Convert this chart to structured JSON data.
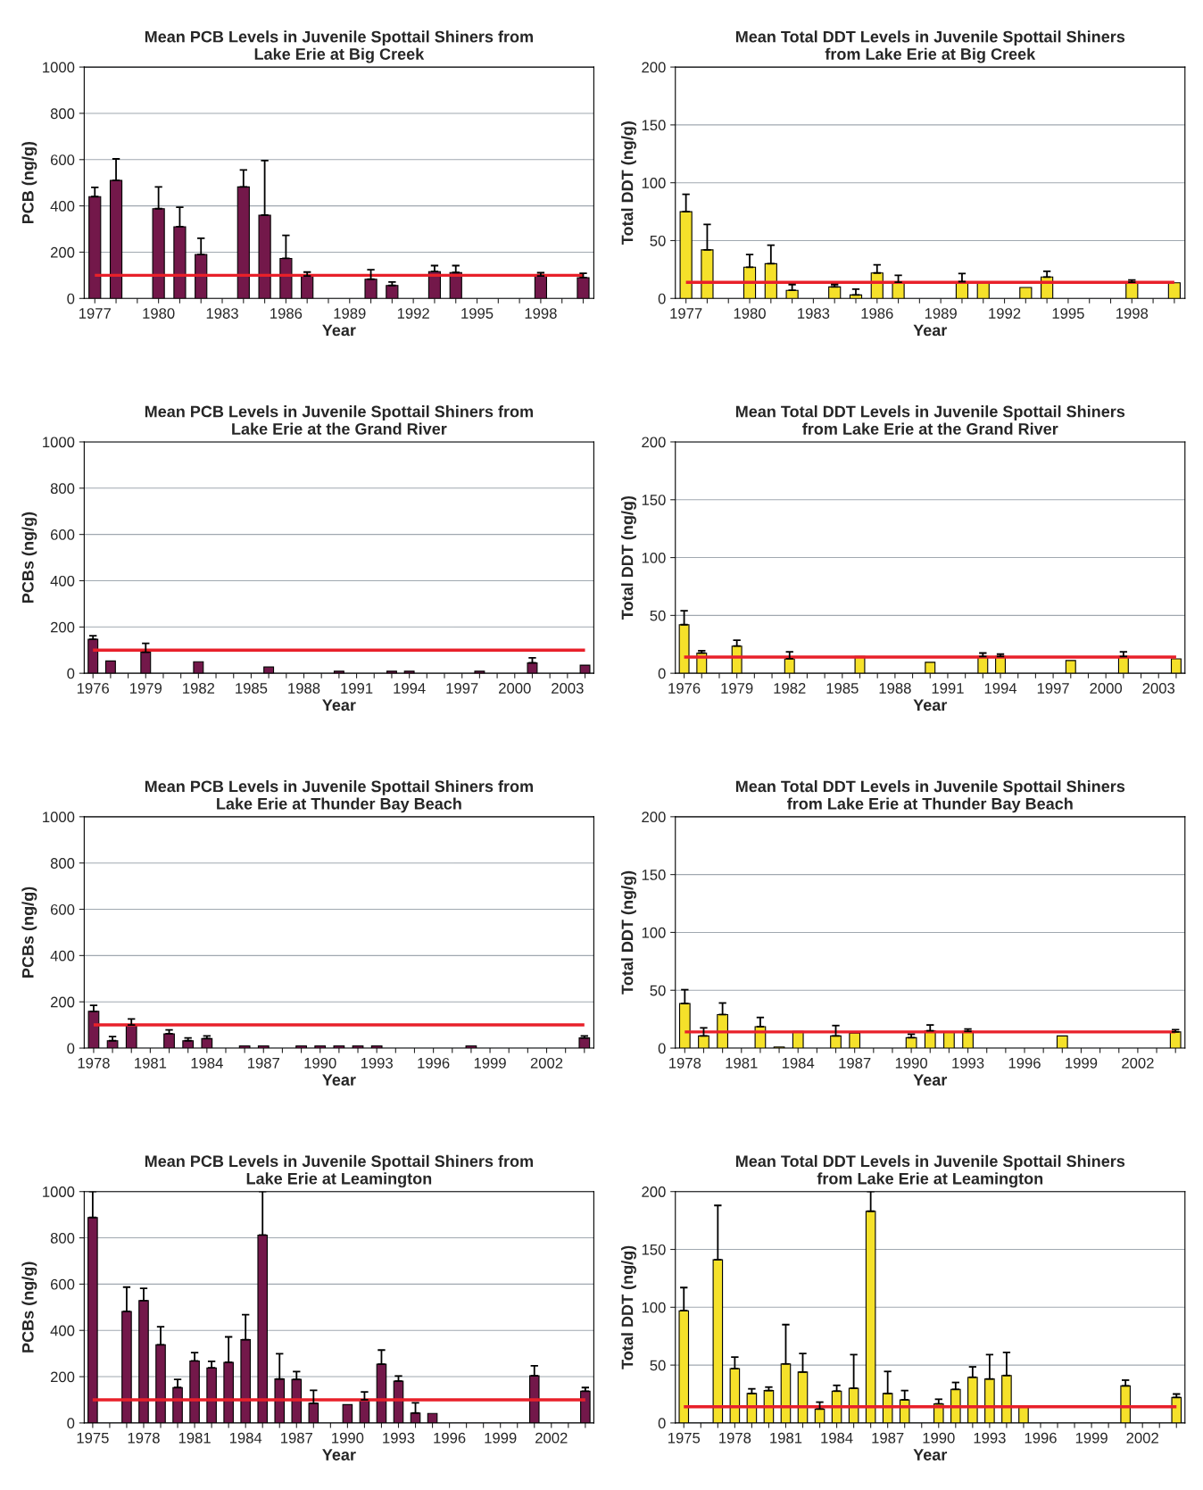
{
  "chart_data": [
    {
      "type": "bar",
      "title": "Mean PCB Levels in Juvenile Spottail Shiners from\nLake Erie at Big Creek",
      "xlabel": "Year",
      "ylabel": "PCB (ng/g)",
      "ylim": [
        0,
        1000
      ],
      "yticks": [
        0,
        200,
        400,
        600,
        800,
        1000
      ],
      "grid": "y",
      "categories": [
        "1977",
        null,
        null,
        "1980",
        null,
        null,
        "1983",
        null,
        null,
        "1986",
        null,
        null,
        "1989",
        null,
        null,
        "1992",
        null,
        null,
        "1995",
        null,
        null,
        "1998",
        null,
        null
      ],
      "series": [
        {
          "color": "#73184a",
          "values": [
            440,
            510,
            null,
            388,
            310,
            190,
            null,
            482,
            360,
            173,
            97,
            null,
            null,
            83,
            56,
            null,
            116,
            112,
            null,
            null,
            null,
            97,
            null,
            90
          ],
          "errors": [
            [
              440,
              480
            ],
            [
              510,
              603
            ],
            null,
            [
              388,
              482
            ],
            [
              310,
              394
            ],
            [
              190,
              260
            ],
            null,
            [
              482,
              555
            ],
            [
              360,
              596
            ],
            [
              173,
              273
            ],
            [
              97,
              114
            ],
            null,
            null,
            [
              83,
              124
            ],
            [
              56,
              71
            ],
            null,
            [
              116,
              142
            ],
            [
              112,
              142
            ],
            null,
            null,
            null,
            [
              97,
              111
            ],
            null,
            [
              90,
              109
            ]
          ]
        }
      ],
      "ref_lines": [
        {
          "axis": "y",
          "value": 100,
          "color": "#e8202a"
        }
      ]
    },
    {
      "type": "bar",
      "title": "Mean Total DDT Levels in Juvenile Spottail Shiners\nfrom Lake Erie at Big Creek",
      "xlabel": "Year",
      "ylabel": "Total DDT (ng/g)",
      "ylim": [
        0,
        200
      ],
      "yticks": [
        0,
        50,
        100,
        150,
        200
      ],
      "grid": "y",
      "categories": [
        "1977",
        null,
        null,
        "1980",
        null,
        null,
        "1983",
        null,
        null,
        "1986",
        null,
        null,
        "1989",
        null,
        null,
        "1992",
        null,
        null,
        "1995",
        null,
        null,
        "1998",
        null,
        null
      ],
      "series": [
        {
          "color": "#f5e12a",
          "values": [
            75,
            42,
            null,
            27,
            30,
            7,
            null,
            10,
            3,
            22,
            14,
            null,
            null,
            14.5,
            13,
            null,
            9.5,
            18.5,
            null,
            null,
            null,
            14,
            null,
            13.5
          ],
          "errors": [
            [
              75,
              90
            ],
            [
              42,
              64
            ],
            null,
            [
              27,
              38
            ],
            [
              30,
              46
            ],
            [
              7,
              12
            ],
            null,
            [
              10,
              12
            ],
            [
              3,
              8
            ],
            [
              22,
              29
            ],
            [
              14,
              20
            ],
            null,
            null,
            [
              14.5,
              21.5
            ],
            null,
            null,
            null,
            [
              18.5,
              23.5
            ],
            null,
            null,
            null,
            [
              14,
              16
            ],
            null,
            null
          ]
        }
      ],
      "ref_lines": [
        {
          "axis": "y",
          "value": 14,
          "color": "#e8202a"
        }
      ]
    },
    {
      "type": "bar",
      "title": "Mean PCB Levels in Juvenile Spottail Shiners from\nLake Erie at the Grand River",
      "xlabel": "Year",
      "ylabel": "PCBs (ng/g)",
      "ylim": [
        0,
        1000
      ],
      "yticks": [
        0,
        200,
        400,
        600,
        800,
        1000
      ],
      "grid": "y",
      "categories": [
        "1976",
        null,
        null,
        "1979",
        null,
        null,
        "1982",
        null,
        null,
        "1985",
        null,
        null,
        "1988",
        null,
        null,
        "1991",
        null,
        null,
        "1994",
        null,
        null,
        "1997",
        null,
        null,
        "2000",
        null,
        null,
        "2003",
        null
      ],
      "series": [
        {
          "color": "#73184a",
          "values": [
            147,
            53,
            null,
            91,
            null,
            null,
            50,
            null,
            null,
            null,
            27,
            null,
            null,
            null,
            9,
            null,
            null,
            9,
            9,
            null,
            null,
            null,
            9,
            null,
            null,
            45,
            null,
            null,
            35
          ],
          "errors": [
            [
              147,
              162
            ],
            null,
            null,
            [
              91,
              129
            ],
            null,
            null,
            null,
            null,
            null,
            null,
            null,
            null,
            null,
            null,
            null,
            null,
            null,
            null,
            null,
            null,
            null,
            null,
            null,
            null,
            null,
            [
              45,
              67
            ],
            null,
            null,
            null
          ]
        }
      ],
      "ref_lines": [
        {
          "axis": "y",
          "value": 100,
          "color": "#e8202a"
        }
      ]
    },
    {
      "type": "bar",
      "title": "Mean Total DDT Levels in Juvenile Spottail Shiners\nfrom Lake Erie at the Grand River",
      "xlabel": "Year",
      "ylabel": "Total DDT (ng/g)",
      "ylim": [
        0,
        200
      ],
      "yticks": [
        0,
        50,
        100,
        150,
        200
      ],
      "grid": "y",
      "categories": [
        "1976",
        null,
        null,
        "1979",
        null,
        null,
        "1982",
        null,
        null,
        "1985",
        null,
        null,
        "1988",
        null,
        null,
        "1991",
        null,
        null,
        "1994",
        null,
        null,
        "1997",
        null,
        null,
        "2000",
        null,
        null,
        "2003",
        null
      ],
      "series": [
        {
          "color": "#f5e12a",
          "values": [
            42,
            17.5,
            null,
            23.5,
            null,
            null,
            12.5,
            null,
            null,
            null,
            14.5,
            null,
            null,
            null,
            9.5,
            null,
            null,
            14.5,
            14.5,
            null,
            null,
            null,
            11,
            null,
            null,
            14.5,
            null,
            null,
            12.5
          ],
          "errors": [
            [
              42,
              54
            ],
            [
              17.5,
              19.5
            ],
            null,
            [
              23.5,
              28.5
            ],
            null,
            null,
            [
              12.5,
              18.5
            ],
            null,
            null,
            null,
            null,
            null,
            null,
            null,
            null,
            null,
            null,
            [
              14.5,
              17.5
            ],
            [
              14.5,
              16.5
            ],
            null,
            null,
            null,
            null,
            null,
            null,
            [
              14.5,
              18.5
            ],
            null,
            null,
            null
          ]
        }
      ],
      "ref_lines": [
        {
          "axis": "y",
          "value": 14,
          "color": "#e8202a"
        }
      ]
    },
    {
      "type": "bar",
      "title": "Mean PCB Levels in Juvenile Spottail Shiners from\nLake Erie at Thunder Bay Beach",
      "xlabel": "Year",
      "ylabel": "PCBs (ng/g)",
      "ylim": [
        0,
        1000
      ],
      "yticks": [
        0,
        200,
        400,
        600,
        800,
        1000
      ],
      "grid": "y",
      "categories": [
        "1978",
        null,
        null,
        "1981",
        null,
        null,
        "1984",
        null,
        null,
        "1987",
        null,
        null,
        "1990",
        null,
        null,
        "1993",
        null,
        null,
        "1996",
        null,
        null,
        "1999",
        null,
        null,
        "2002",
        null,
        null
      ],
      "series": [
        {
          "color": "#73184a",
          "values": [
            159,
            32,
            100,
            null,
            62,
            32,
            41,
            null,
            10,
            10,
            null,
            10,
            10,
            10,
            10,
            10,
            null,
            null,
            null,
            null,
            10,
            null,
            null,
            null,
            null,
            null,
            44
          ],
          "errors": [
            [
              159,
              185
            ],
            [
              32,
              50
            ],
            [
              100,
              126
            ],
            null,
            [
              62,
              79
            ],
            [
              32,
              44
            ],
            [
              41,
              53
            ],
            null,
            null,
            null,
            null,
            null,
            null,
            null,
            null,
            null,
            null,
            null,
            null,
            null,
            null,
            null,
            null,
            null,
            null,
            null,
            [
              44,
              53
            ]
          ]
        }
      ],
      "ref_lines": [
        {
          "axis": "y",
          "value": 100,
          "color": "#e8202a"
        }
      ]
    },
    {
      "type": "bar",
      "title": "Mean Total DDT Levels in Juvenile Spottail Shiners\nfrom Lake Erie at Thunder Bay Beach",
      "xlabel": "Year",
      "ylabel": "Total DDT (ng/g)",
      "ylim": [
        0,
        200
      ],
      "yticks": [
        0,
        50,
        100,
        150,
        200
      ],
      "grid": "y",
      "categories": [
        "1978",
        null,
        null,
        "1981",
        null,
        null,
        "1984",
        null,
        null,
        "1987",
        null,
        null,
        "1990",
        null,
        null,
        "1993",
        null,
        null,
        "1996",
        null,
        null,
        "1999",
        null,
        null,
        "2002",
        null,
        null
      ],
      "series": [
        {
          "color": "#f5e12a",
          "values": [
            38.5,
            10.5,
            29,
            null,
            18.5,
            1,
            14.5,
            null,
            10.5,
            13,
            null,
            null,
            9,
            15,
            14,
            14.5,
            null,
            null,
            null,
            null,
            10.5,
            null,
            null,
            null,
            null,
            null,
            14
          ],
          "errors": [
            [
              38.5,
              50.5
            ],
            [
              10.5,
              17.5
            ],
            [
              29,
              39
            ],
            null,
            [
              18.5,
              26.5
            ],
            null,
            null,
            null,
            [
              10.5,
              19.5
            ],
            null,
            null,
            null,
            [
              9,
              12
            ],
            [
              15,
              20
            ],
            null,
            [
              14.5,
              16.5
            ],
            null,
            null,
            null,
            null,
            null,
            null,
            null,
            null,
            null,
            null,
            [
              14,
              16
            ]
          ]
        }
      ],
      "ref_lines": [
        {
          "axis": "y",
          "value": 14,
          "color": "#e8202a"
        }
      ]
    },
    {
      "type": "bar",
      "title": "Mean PCB Levels in Juvenile Spottail Shiners from\nLake Erie at Leamington",
      "xlabel": "Year",
      "ylabel": "PCBs (ng/g)",
      "ylim": [
        0,
        1000
      ],
      "yticks": [
        0,
        200,
        400,
        600,
        800,
        1000
      ],
      "grid": "y",
      "categories": [
        "1975",
        null,
        null,
        "1978",
        null,
        null,
        "1981",
        null,
        null,
        "1984",
        null,
        null,
        "1987",
        null,
        null,
        "1990",
        null,
        null,
        "1993",
        null,
        null,
        "1996",
        null,
        null,
        "1999",
        null,
        null,
        "2002",
        null,
        null
      ],
      "series": [
        {
          "color": "#73184a",
          "values": [
            888,
            null,
            482,
            529,
            338,
            153,
            268,
            238,
            262,
            360,
            812,
            190,
            188,
            85,
            null,
            79,
            100,
            254,
            181,
            43,
            41,
            null,
            null,
            null,
            null,
            null,
            204,
            null,
            null,
            137
          ],
          "errors": [
            [
              888,
              1000
            ],
            null,
            [
              482,
              587
            ],
            [
              529,
              582
            ],
            [
              338,
              416
            ],
            [
              153,
              188
            ],
            [
              268,
              304
            ],
            [
              238,
              266
            ],
            [
              262,
              372
            ],
            [
              360,
              468
            ],
            [
              812,
              1000
            ],
            [
              190,
              299
            ],
            [
              188,
              222
            ],
            [
              85,
              141
            ],
            null,
            null,
            [
              100,
              134
            ],
            [
              254,
              315
            ],
            [
              181,
              203
            ],
            [
              43,
              87
            ],
            null,
            null,
            null,
            null,
            null,
            null,
            [
              204,
              247
            ],
            null,
            null,
            [
              137,
              153
            ]
          ]
        }
      ],
      "ref_lines": [
        {
          "axis": "y",
          "value": 100,
          "color": "#e8202a"
        }
      ]
    },
    {
      "type": "bar",
      "title": "Mean Total DDT Levels in Juvenile Spottail Shiners\nfrom Lake Erie at Leamington",
      "xlabel": "Year",
      "ylabel": "Total DDT (ng/g)",
      "ylim": [
        0,
        200
      ],
      "yticks": [
        0,
        50,
        100,
        150,
        200
      ],
      "grid": "y",
      "categories": [
        "1975",
        null,
        null,
        "1978",
        null,
        null,
        "1981",
        null,
        null,
        "1984",
        null,
        null,
        "1987",
        null,
        null,
        "1990",
        null,
        null,
        "1993",
        null,
        null,
        "1996",
        null,
        null,
        "1999",
        null,
        null,
        "2002",
        null,
        null
      ],
      "series": [
        {
          "color": "#f5e12a",
          "values": [
            97,
            null,
            141,
            47,
            25.5,
            28,
            51,
            44,
            12,
            27.5,
            30,
            183,
            25.5,
            20,
            null,
            16.5,
            29,
            39.5,
            38,
            41,
            14,
            null,
            null,
            null,
            null,
            null,
            32,
            null,
            null,
            22
          ],
          "errors": [
            [
              97,
              117
            ],
            null,
            [
              141,
              188
            ],
            [
              47,
              57
            ],
            [
              25.5,
              29.5
            ],
            [
              28,
              31
            ],
            [
              51,
              85
            ],
            [
              44,
              60
            ],
            [
              12,
              18
            ],
            [
              27.5,
              32.5
            ],
            [
              30,
              59
            ],
            [
              183,
              200
            ],
            [
              25.5,
              44.5
            ],
            [
              20,
              28
            ],
            null,
            [
              16.5,
              20.5
            ],
            [
              29,
              35
            ],
            [
              39.5,
              48.5
            ],
            [
              38,
              59
            ],
            [
              41,
              61
            ],
            null,
            null,
            null,
            null,
            null,
            null,
            [
              32,
              37
            ],
            null,
            null,
            [
              22,
              25
            ]
          ]
        }
      ],
      "ref_lines": [
        {
          "axis": "y",
          "value": 14,
          "color": "#e8202a"
        }
      ]
    }
  ]
}
